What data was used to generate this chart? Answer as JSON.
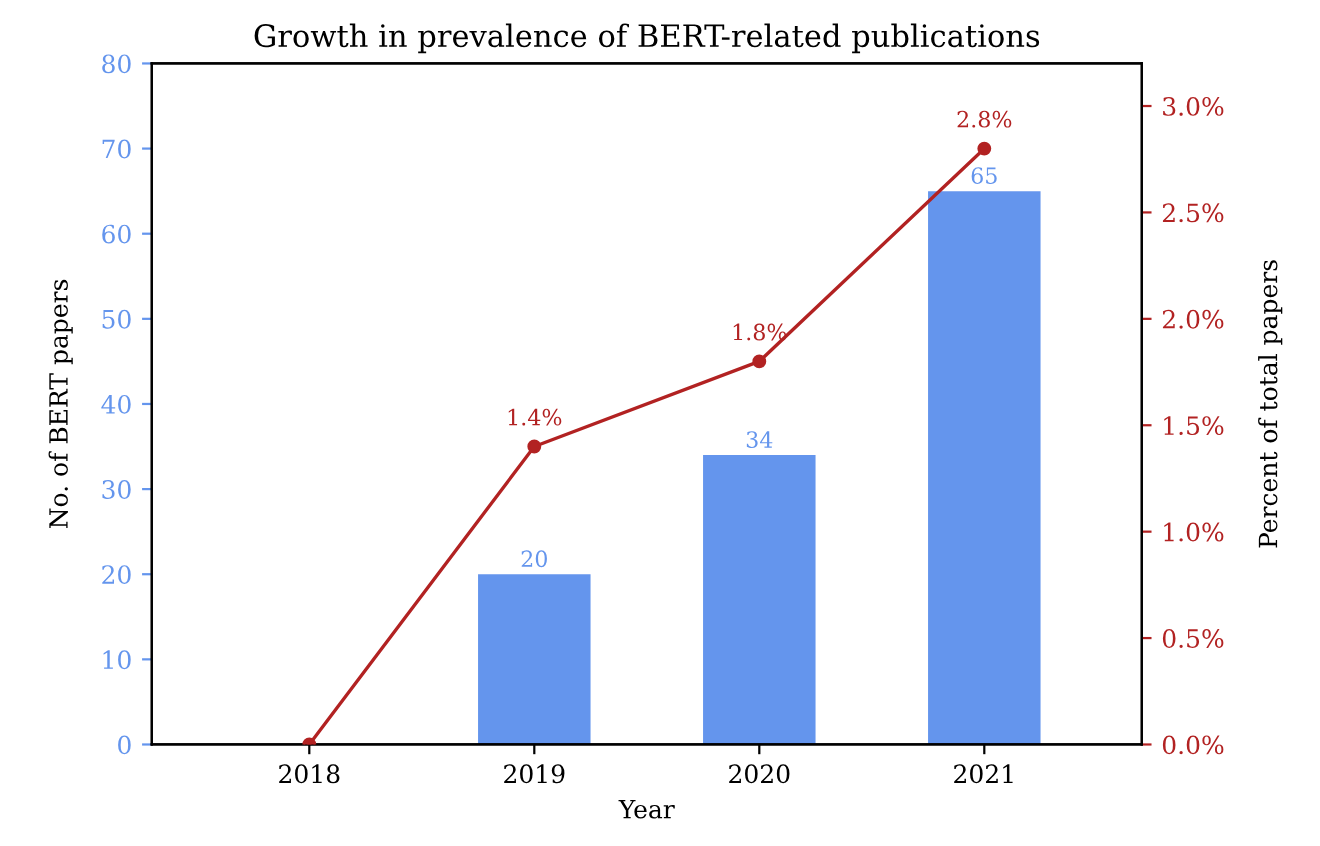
{
  "chart_data": {
    "type": "bar",
    "title": "Growth in prevalence of BERT-related publications",
    "xlabel": "Year",
    "ylabel": "No. of BERT papers",
    "y2label": "Percent of total papers",
    "categories": [
      "2018",
      "2019",
      "2020",
      "2021"
    ],
    "series": [
      {
        "color": "#6495ed",
        "values": [
          0,
          20,
          34,
          65
        ],
        "value_labels": [
          null,
          "20",
          "34",
          "65"
        ]
      },
      {
        "type": "line",
        "axis": "y2",
        "color": "#b22222",
        "marker": "circle",
        "line_style": "solid",
        "values": [
          0.0,
          1.4,
          1.8,
          2.8
        ],
        "value_labels": [
          null,
          "1.4%",
          "1.8%",
          "2.8%"
        ]
      }
    ],
    "ylim": [
      0,
      80
    ],
    "yticks": [
      0,
      10,
      20,
      30,
      40,
      50,
      60,
      70,
      80
    ],
    "y2lim": [
      0,
      3.2
    ],
    "y2ticks": [
      {
        "value": 0,
        "label": "0.0%"
      },
      {
        "value": 0.5,
        "label": "0.5%"
      },
      {
        "value": 1.0,
        "label": "1.0%"
      },
      {
        "value": 1.5,
        "label": "1.5%"
      },
      {
        "value": 2.0,
        "label": "2.0%"
      },
      {
        "value": 2.5,
        "label": "2.5%"
      },
      {
        "value": 3.0,
        "label": "3.0%"
      }
    ],
    "grid": false,
    "legend": false
  }
}
